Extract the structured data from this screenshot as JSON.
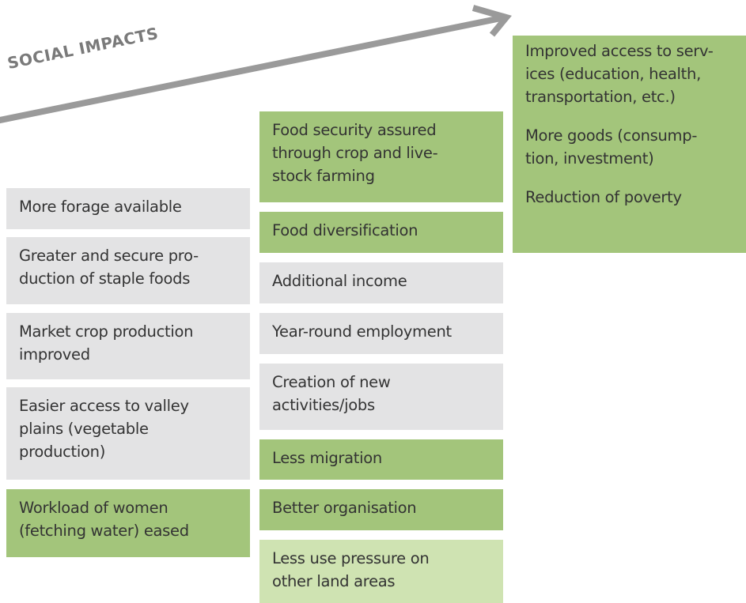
{
  "arrow_label": "SOCIAL IMPACTS",
  "columns": [
    {
      "boxes": [
        {
          "lines": [
            "More forage available"
          ]
        },
        {
          "lines": [
            "Greater and secure pro-",
            "duction of staple foods"
          ]
        },
        {
          "lines": [
            "Market crop production",
            "improved"
          ]
        },
        {
          "lines": [
            "Easier access to valley",
            "plains (vegetable",
            "production)"
          ]
        },
        {
          "lines": [
            "Workload of women",
            "(fetching water) eased"
          ]
        }
      ]
    },
    {
      "boxes": [
        {
          "lines": [
            "Food security assured",
            "through crop and live-",
            "stock farming"
          ]
        },
        {
          "lines": [
            "Food diversification"
          ]
        },
        {
          "lines": [
            "Additional income"
          ]
        },
        {
          "lines": [
            "Year-round employment"
          ]
        },
        {
          "lines": [
            "Creation of new",
            "activities/jobs"
          ]
        },
        {
          "lines": [
            "Less migration"
          ]
        },
        {
          "lines": [
            "Better organisation"
          ]
        },
        {
          "lines": [
            "Less use pressure on",
            "other land areas"
          ]
        }
      ]
    },
    {
      "boxes": [
        {
          "lines": [
            "Improved access to serv-",
            "ices (education, health,",
            "transportation, etc.)",
            "",
            "More goods (consump-",
            "tion, investment)",
            "",
            "Reduction of poverty"
          ]
        }
      ]
    }
  ]
}
